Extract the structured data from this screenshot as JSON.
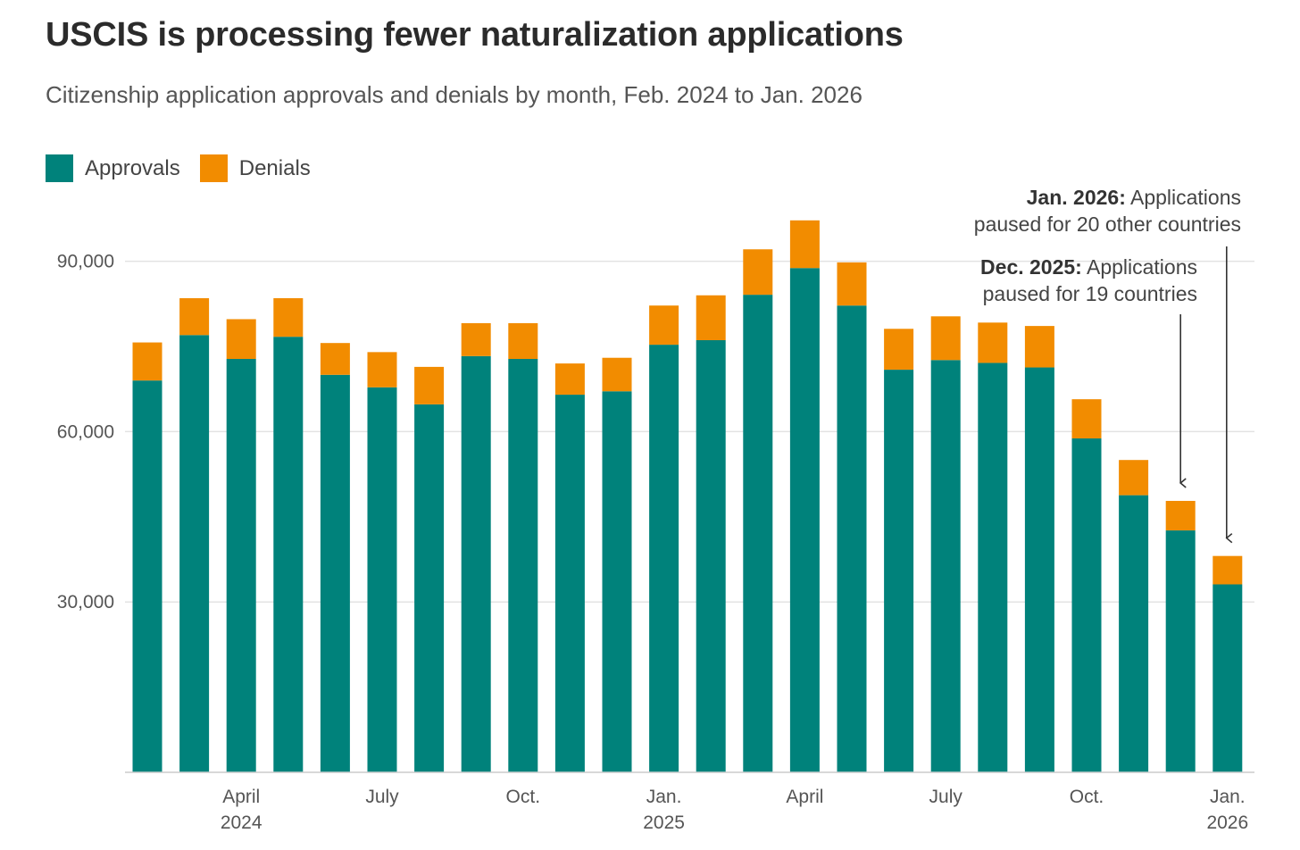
{
  "title": "USCIS is processing fewer naturalization applications",
  "subtitle": "Citizenship application approvals and denials by month, Feb. 2024 to Jan. 2026",
  "colors": {
    "approvals": "#00827b",
    "denials": "#f28c00",
    "grid": "#e3e3e3",
    "axis": "#cccccc",
    "arrow": "#333333"
  },
  "chart_data": {
    "type": "bar",
    "stacked": true,
    "categories": [
      "Feb. 2024",
      "Mar. 2024",
      "Apr. 2024",
      "May 2024",
      "Jun. 2024",
      "Jul. 2024",
      "Aug. 2024",
      "Sep. 2024",
      "Oct. 2024",
      "Nov. 2024",
      "Dec. 2024",
      "Jan. 2025",
      "Feb. 2025",
      "Mar. 2025",
      "Apr. 2025",
      "May 2025",
      "Jun. 2025",
      "Jul. 2025",
      "Aug. 2025",
      "Sep. 2025",
      "Oct. 2025",
      "Nov. 2025",
      "Dec. 2025",
      "Jan. 2026"
    ],
    "series": [
      {
        "name": "Approvals",
        "values": [
          69000,
          77000,
          72800,
          76700,
          70000,
          67800,
          64800,
          73300,
          72800,
          66500,
          67100,
          75300,
          76100,
          84100,
          88800,
          82200,
          70900,
          72600,
          72100,
          71300,
          58800,
          48800,
          42600,
          33100
        ]
      },
      {
        "name": "Denials",
        "values": [
          6700,
          6500,
          7000,
          6800,
          5600,
          6200,
          6600,
          5800,
          6300,
          5500,
          5900,
          6900,
          7900,
          8000,
          8400,
          7600,
          7200,
          7700,
          7100,
          7300,
          6900,
          6200,
          5200,
          5000
        ]
      }
    ],
    "ylim": [
      0,
      100000
    ],
    "yticks": [
      30000,
      60000,
      90000
    ],
    "ytick_labels": [
      "30,000",
      "60,000",
      "90,000"
    ],
    "xticks": [
      {
        "index": 2,
        "lines": [
          "April",
          "2024"
        ]
      },
      {
        "index": 5,
        "lines": [
          "July"
        ]
      },
      {
        "index": 8,
        "lines": [
          "Oct."
        ]
      },
      {
        "index": 11,
        "lines": [
          "Jan.",
          "2025"
        ]
      },
      {
        "index": 14,
        "lines": [
          "April"
        ]
      },
      {
        "index": 17,
        "lines": [
          "July"
        ]
      },
      {
        "index": 20,
        "lines": [
          "Oct."
        ]
      },
      {
        "index": 23,
        "lines": [
          "Jan.",
          "2026"
        ]
      }
    ],
    "grid": true,
    "legend_position": "top-left",
    "annotations": [
      {
        "index": 22,
        "bold": "Dec. 2025:",
        "text": "Applications",
        "line2": "paused for 19 countries"
      },
      {
        "index": 23,
        "bold": "Jan. 2026:",
        "text": "Applications",
        "line2": "paused for 20 other countries"
      }
    ]
  }
}
